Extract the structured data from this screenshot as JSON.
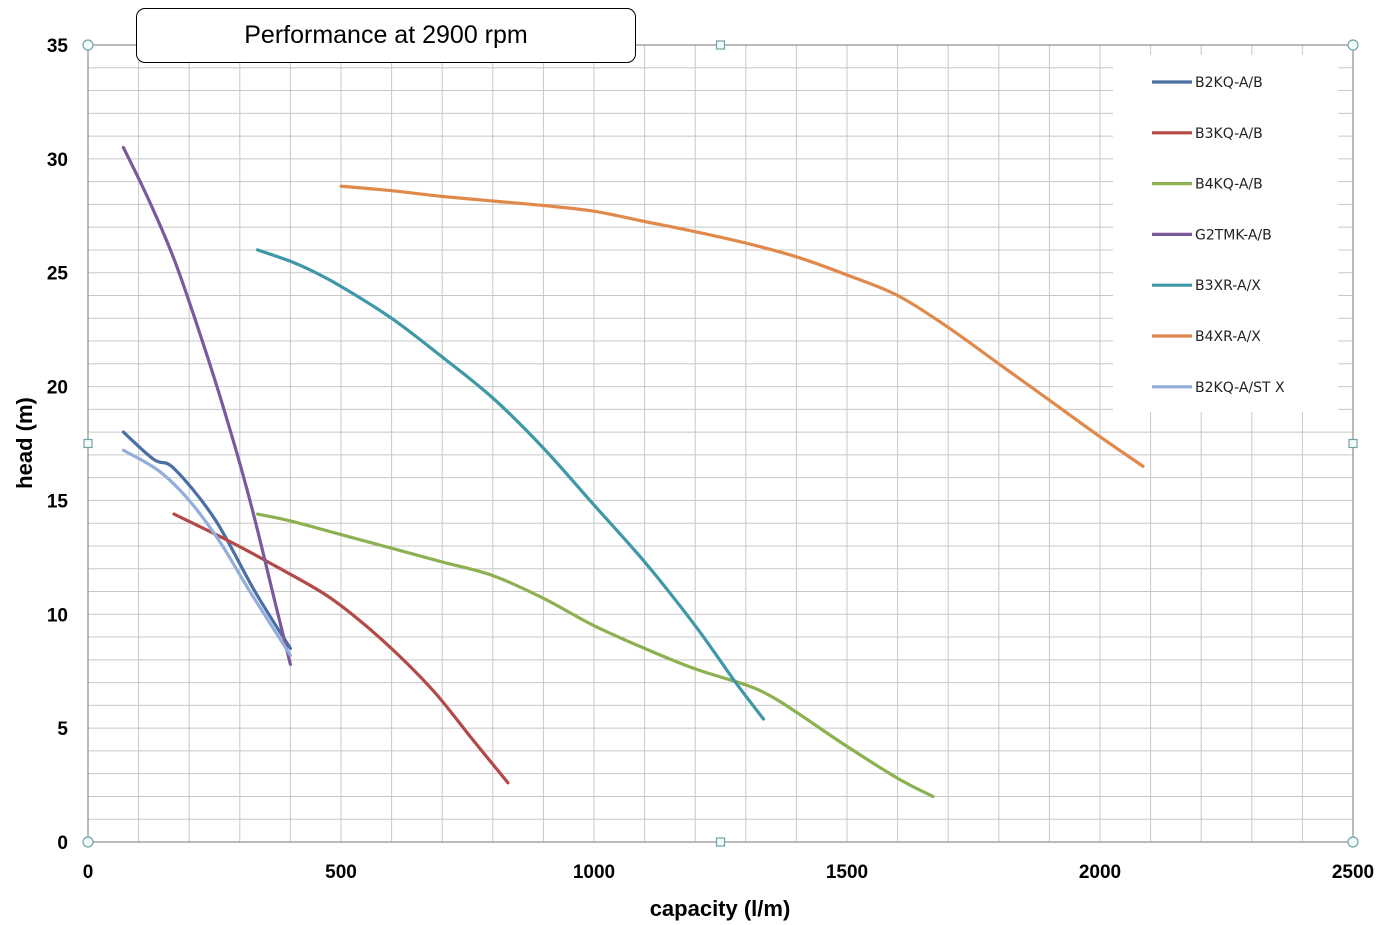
{
  "chart_data": {
    "type": "line",
    "title": "Performance at 2900 rpm",
    "xlabel": "capacity (l/m)",
    "ylabel": "head (m)",
    "xlim": [
      0,
      2500
    ],
    "ylim": [
      0,
      35
    ],
    "xticks": [
      0,
      500,
      1000,
      1500,
      2000,
      2500
    ],
    "yticks": [
      0,
      5,
      10,
      15,
      20,
      25,
      30,
      35
    ],
    "grid": true,
    "legend_position": "top-right",
    "series": [
      {
        "name": "B2KQ-A/B",
        "color": "#4a6fa5",
        "x": [
          70,
          130,
          170,
          250,
          330,
          400
        ],
        "y": [
          18.0,
          16.8,
          16.4,
          14.2,
          11.0,
          8.5
        ]
      },
      {
        "name": "B3KQ-A/B",
        "color": "#b34a47",
        "x": [
          170,
          280,
          380,
          480,
          580,
          680,
          760,
          830
        ],
        "y": [
          14.4,
          13.2,
          12.0,
          10.7,
          8.9,
          6.7,
          4.5,
          2.6
        ]
      },
      {
        "name": "B4KQ-A/B",
        "color": "#8db051",
        "x": [
          335,
          400,
          500,
          600,
          700,
          800,
          900,
          1000,
          1100,
          1200,
          1300,
          1350,
          1400,
          1500,
          1600,
          1670
        ],
        "y": [
          14.4,
          14.1,
          13.5,
          12.9,
          12.3,
          11.7,
          10.7,
          9.5,
          8.5,
          7.6,
          6.9,
          6.4,
          5.7,
          4.2,
          2.8,
          2.0
        ]
      },
      {
        "name": "G2TMK-A/B",
        "color": "#7a5a9c",
        "x": [
          70,
          120,
          170,
          220,
          270,
          320,
          370,
          400
        ],
        "y": [
          30.5,
          28.2,
          25.6,
          22.4,
          18.9,
          15.0,
          10.5,
          7.8
        ]
      },
      {
        "name": "B3XR-A/X",
        "color": "#3e98a8",
        "x": [
          335,
          400,
          450,
          500,
          600,
          700,
          800,
          900,
          1000,
          1100,
          1200,
          1280,
          1335
        ],
        "y": [
          26.0,
          25.5,
          25.0,
          24.4,
          23.0,
          21.3,
          19.5,
          17.3,
          14.8,
          12.3,
          9.5,
          7.0,
          5.4
        ]
      },
      {
        "name": "B4XR-A/X",
        "color": "#e0894a",
        "x": [
          500,
          600,
          700,
          800,
          900,
          1000,
          1100,
          1200,
          1300,
          1400,
          1500,
          1600,
          1700,
          1800,
          1900,
          2000,
          2085
        ],
        "y": [
          28.8,
          28.6,
          28.35,
          28.15,
          27.95,
          27.7,
          27.25,
          26.8,
          26.3,
          25.7,
          24.9,
          24.0,
          22.6,
          21.0,
          19.4,
          17.8,
          16.5
        ]
      },
      {
        "name": "B2KQ-A/ST X",
        "color": "#93aedb",
        "x": [
          70,
          140,
          200,
          260,
          320,
          400
        ],
        "y": [
          17.2,
          16.3,
          15.0,
          13.2,
          11.0,
          8.2
        ]
      }
    ]
  }
}
